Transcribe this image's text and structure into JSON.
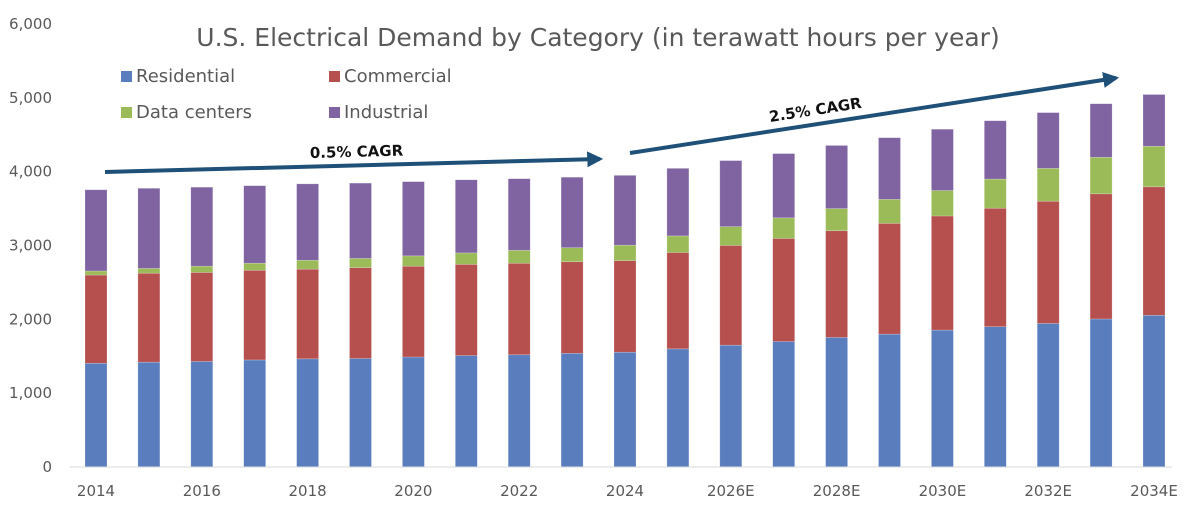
{
  "chart_data": {
    "type": "bar",
    "stacked": true,
    "title": "U.S. Electrical Demand by Category (in terawatt hours per year)",
    "xlabel": "",
    "ylabel": "",
    "ylim": [
      0,
      6000
    ],
    "y_ticks": [
      "0",
      "1,000",
      "2,000",
      "3,000",
      "4,000",
      "5,000",
      "6,000"
    ],
    "y_tick_values": [
      0,
      1000,
      2000,
      3000,
      4000,
      5000,
      6000
    ],
    "categories": [
      "2014",
      "",
      "2016",
      "",
      "2018",
      "",
      "2020",
      "",
      "2022",
      "",
      "2024",
      "",
      "2026E",
      "",
      "2028E",
      "",
      "2030E",
      "",
      "2032E",
      "",
      "2034E"
    ],
    "grid": false,
    "legend_position": "top-left",
    "series": [
      {
        "name": "Residential",
        "color": "#5a7ebd",
        "values": [
          1405,
          1420,
          1430,
          1450,
          1465,
          1470,
          1490,
          1510,
          1520,
          1540,
          1555,
          1600,
          1650,
          1700,
          1755,
          1800,
          1855,
          1900,
          1945,
          2005,
          2055
        ]
      },
      {
        "name": "Commercial",
        "color": "#b5504f",
        "values": [
          1195,
          1205,
          1205,
          1215,
          1215,
          1230,
          1230,
          1235,
          1240,
          1240,
          1240,
          1305,
          1350,
          1395,
          1445,
          1500,
          1545,
          1605,
          1655,
          1695,
          1740
        ]
      },
      {
        "name": "Data centers",
        "color": "#9bbb59",
        "values": [
          55,
          65,
          85,
          95,
          120,
          125,
          140,
          155,
          175,
          190,
          210,
          225,
          255,
          280,
          300,
          325,
          345,
          395,
          445,
          495,
          550
        ]
      },
      {
        "name": "Industrial",
        "color": "#7f64a1",
        "values": [
          1100,
          1085,
          1070,
          1050,
          1035,
          1020,
          1005,
          990,
          970,
          955,
          945,
          915,
          895,
          870,
          855,
          835,
          830,
          790,
          755,
          725,
          700
        ]
      }
    ],
    "annotations": [
      {
        "text": "0.5% CAGR",
        "color": "#1f5078"
      },
      {
        "text": "2.5% CAGR",
        "color": "#1f5078"
      }
    ]
  }
}
